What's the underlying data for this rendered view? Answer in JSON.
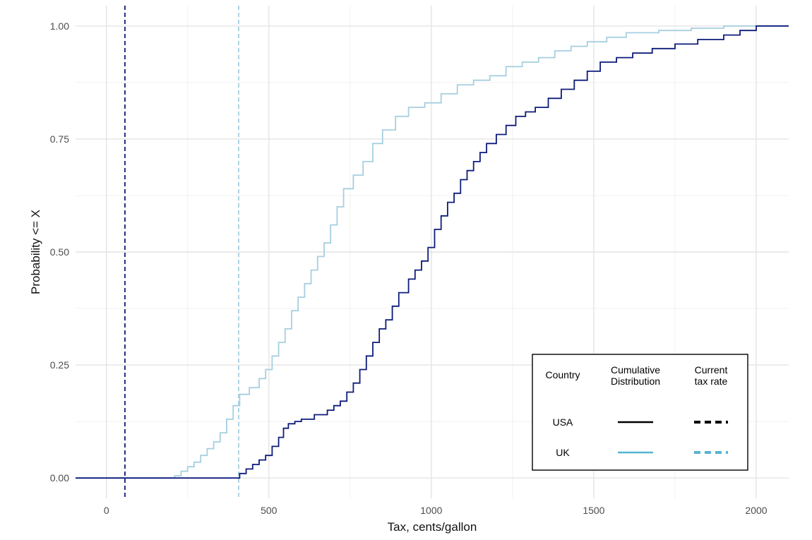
{
  "chart_data": {
    "type": "line",
    "title": "",
    "xlabel": "Tax, cents/gallon",
    "ylabel": "Probability <= X",
    "xlim": [
      -95,
      2100
    ],
    "ylim": [
      -0.045,
      1.045
    ],
    "x_ticks": [
      0,
      500,
      1000,
      1500,
      2000
    ],
    "x_tick_labels": [
      "0",
      "500",
      "1000",
      "1500",
      "2000"
    ],
    "y_ticks": [
      0,
      0.25,
      0.5,
      0.75,
      1.0
    ],
    "y_tick_labels": [
      "0.00",
      "0.25",
      "0.50",
      "0.75",
      "1.00"
    ],
    "grid": true,
    "legend_position": "bottom-right",
    "legend": {
      "headers": [
        "Country",
        "Cumulative\nDistribution",
        "Current\ntax rate"
      ],
      "rows": [
        {
          "country": "USA",
          "line_color": "#000000",
          "dash_color": "#000000"
        },
        {
          "country": "UK",
          "line_color": "#56b4d3",
          "dash_color": "#56b4d3"
        }
      ]
    },
    "series": [
      {
        "name": "USA",
        "color": "#0d1b7a",
        "step": true,
        "points": [
          [
            -95,
            0
          ],
          [
            405,
            0
          ],
          [
            410,
            0.01
          ],
          [
            430,
            0.02
          ],
          [
            450,
            0.03
          ],
          [
            470,
            0.04
          ],
          [
            490,
            0.05
          ],
          [
            510,
            0.07
          ],
          [
            530,
            0.09
          ],
          [
            545,
            0.11
          ],
          [
            560,
            0.12
          ],
          [
            580,
            0.125
          ],
          [
            600,
            0.13
          ],
          [
            640,
            0.14
          ],
          [
            680,
            0.15
          ],
          [
            700,
            0.16
          ],
          [
            720,
            0.17
          ],
          [
            740,
            0.19
          ],
          [
            760,
            0.21
          ],
          [
            780,
            0.24
          ],
          [
            800,
            0.27
          ],
          [
            820,
            0.3
          ],
          [
            840,
            0.33
          ],
          [
            860,
            0.35
          ],
          [
            880,
            0.38
          ],
          [
            900,
            0.41
          ],
          [
            930,
            0.44
          ],
          [
            950,
            0.46
          ],
          [
            970,
            0.48
          ],
          [
            990,
            0.51
          ],
          [
            1010,
            0.55
          ],
          [
            1030,
            0.58
          ],
          [
            1050,
            0.61
          ],
          [
            1070,
            0.63
          ],
          [
            1090,
            0.66
          ],
          [
            1110,
            0.68
          ],
          [
            1130,
            0.7
          ],
          [
            1150,
            0.72
          ],
          [
            1170,
            0.74
          ],
          [
            1200,
            0.76
          ],
          [
            1230,
            0.78
          ],
          [
            1260,
            0.8
          ],
          [
            1290,
            0.81
          ],
          [
            1320,
            0.82
          ],
          [
            1360,
            0.84
          ],
          [
            1400,
            0.86
          ],
          [
            1440,
            0.88
          ],
          [
            1480,
            0.9
          ],
          [
            1520,
            0.92
          ],
          [
            1570,
            0.93
          ],
          [
            1620,
            0.94
          ],
          [
            1680,
            0.95
          ],
          [
            1750,
            0.96
          ],
          [
            1820,
            0.97
          ],
          [
            1900,
            0.98
          ],
          [
            1950,
            0.99
          ],
          [
            2000,
            1.0
          ],
          [
            2100,
            1.0
          ]
        ]
      },
      {
        "name": "UK",
        "color": "#a6cfe0",
        "step": true,
        "points": [
          [
            -95,
            0
          ],
          [
            180,
            0
          ],
          [
            210,
            0.005
          ],
          [
            230,
            0.015
          ],
          [
            250,
            0.025
          ],
          [
            270,
            0.035
          ],
          [
            290,
            0.05
          ],
          [
            310,
            0.065
          ],
          [
            330,
            0.08
          ],
          [
            350,
            0.1
          ],
          [
            370,
            0.13
          ],
          [
            390,
            0.16
          ],
          [
            410,
            0.185
          ],
          [
            440,
            0.2
          ],
          [
            470,
            0.22
          ],
          [
            490,
            0.24
          ],
          [
            510,
            0.27
          ],
          [
            530,
            0.3
          ],
          [
            550,
            0.33
          ],
          [
            570,
            0.37
          ],
          [
            590,
            0.4
          ],
          [
            610,
            0.43
          ],
          [
            630,
            0.46
          ],
          [
            650,
            0.49
          ],
          [
            670,
            0.52
          ],
          [
            690,
            0.56
          ],
          [
            710,
            0.6
          ],
          [
            730,
            0.64
          ],
          [
            760,
            0.67
          ],
          [
            790,
            0.7
          ],
          [
            820,
            0.74
          ],
          [
            850,
            0.77
          ],
          [
            890,
            0.8
          ],
          [
            930,
            0.82
          ],
          [
            980,
            0.83
          ],
          [
            1030,
            0.85
          ],
          [
            1080,
            0.87
          ],
          [
            1130,
            0.88
          ],
          [
            1180,
            0.89
          ],
          [
            1230,
            0.91
          ],
          [
            1280,
            0.92
          ],
          [
            1330,
            0.93
          ],
          [
            1380,
            0.945
          ],
          [
            1430,
            0.955
          ],
          [
            1480,
            0.965
          ],
          [
            1540,
            0.975
          ],
          [
            1600,
            0.985
          ],
          [
            1700,
            0.99
          ],
          [
            1800,
            0.995
          ],
          [
            1900,
            1.0
          ],
          [
            2100,
            1.0
          ]
        ]
      }
    ],
    "reference_lines": [
      {
        "country": "USA",
        "x": 57,
        "color": "#0d1b7a",
        "style": "dashed"
      },
      {
        "country": "UK",
        "x": 407,
        "color": "#a6cfe0",
        "style": "dashed"
      }
    ]
  }
}
